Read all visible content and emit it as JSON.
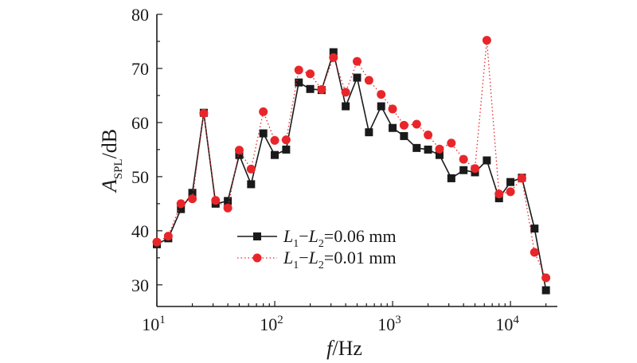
{
  "chart_data": {
    "type": "line",
    "x_scale": "log",
    "xlabel": {
      "var": "f",
      "rest": "/Hz"
    },
    "ylabel": {
      "var": "A",
      "sub": "SPL",
      "rest": "/dB"
    },
    "xlim": [
      10,
      25000
    ],
    "ylim": [
      26,
      80
    ],
    "y_ticks": [
      30,
      40,
      50,
      60,
      70,
      80
    ],
    "x_ticks": [
      {
        "value": 10,
        "base": "10",
        "exp": "1"
      },
      {
        "value": 100,
        "base": "10",
        "exp": "2"
      },
      {
        "value": 1000,
        "base": "10",
        "exp": "3"
      },
      {
        "value": 10000,
        "base": "10",
        "exp": "4"
      }
    ],
    "x": [
      10,
      12.5,
      16,
      20,
      25,
      31.5,
      40,
      50,
      63,
      80,
      100,
      125,
      160,
      200,
      250,
      315,
      400,
      500,
      630,
      800,
      1000,
      1250,
      1600,
      2000,
      2500,
      3150,
      4000,
      5000,
      6300,
      8000,
      10000,
      12500,
      16000,
      20000
    ],
    "series": [
      {
        "name": {
          "p1": "L",
          "s1": "1",
          "mid": "−",
          "p2": "L",
          "s2": "2",
          "rest": "=0.06 mm"
        },
        "color": "#1a1a1a",
        "marker": "square",
        "line": "solid",
        "values": [
          37.5,
          38.6,
          44.0,
          47.0,
          61.8,
          45.0,
          45.5,
          54.0,
          48.6,
          58.0,
          54.0,
          55.0,
          67.4,
          66.2,
          66.0,
          73.0,
          63.0,
          68.3,
          58.2,
          63.0,
          59.0,
          57.5,
          55.3,
          55.0,
          54.0,
          49.7,
          51.2,
          50.8,
          53.0,
          46.0,
          49.0,
          49.8,
          40.4,
          29.0
        ]
      },
      {
        "name": {
          "p1": "L",
          "s1": "1",
          "mid": "−",
          "p2": "L",
          "s2": "2",
          "rest": "=0.01 mm"
        },
        "color": "#e8262a",
        "marker": "circle",
        "line": "dotted",
        "values": [
          37.9,
          39.0,
          45.0,
          45.9,
          61.7,
          45.6,
          44.2,
          54.9,
          51.4,
          62.0,
          56.7,
          56.8,
          69.7,
          69.0,
          66.1,
          72.0,
          65.6,
          71.3,
          67.8,
          65.2,
          62.5,
          59.5,
          59.7,
          57.7,
          55.1,
          56.2,
          53.2,
          51.5,
          75.2,
          46.8,
          47.2,
          49.7,
          36.0,
          31.3
        ]
      }
    ],
    "legend_position": "lower-center"
  }
}
